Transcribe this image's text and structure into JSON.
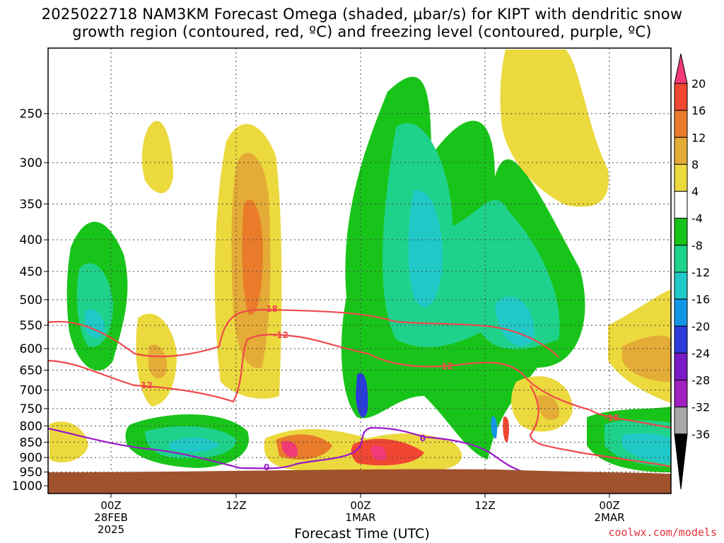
{
  "title": {
    "line1": "2025022718 NAM3KM Forecast Omega (shaded, μbar/s) for KIPT with dendritic snow",
    "line2": "growth region (contoured, red, ºC) and freezing level (contoured, purple, ºC)"
  },
  "credit": "coolwx.com/models",
  "chart_data": {
    "type": "heatmap",
    "xlabel": "Forecast Time (UTC)",
    "ylabel": "",
    "y_scale": "log-pressure",
    "y_direction": "reversed",
    "ylim": [
      1000,
      200
    ],
    "ytick_labels": [
      "250",
      "300",
      "350",
      "400",
      "450",
      "500",
      "550",
      "600",
      "650",
      "700",
      "750",
      "800",
      "850",
      "900",
      "950",
      "1000"
    ],
    "xtick_labels": [
      {
        "line1": "00Z",
        "line2": "28FEB",
        "line3": "2025"
      },
      {
        "line1": "12Z",
        "line2": "",
        "line3": ""
      },
      {
        "line1": "00Z",
        "line2": "1MAR",
        "line3": ""
      },
      {
        "line1": "12Z",
        "line2": "",
        "line3": ""
      },
      {
        "line1": "00Z",
        "line2": "2MAR",
        "line3": ""
      }
    ],
    "grid": true,
    "colorbar": {
      "labels": [
        "20",
        "16",
        "12",
        "8",
        "4",
        "-4",
        "-8",
        "-12",
        "-16",
        "-20",
        "-24",
        "-28",
        "-32",
        "-36"
      ],
      "colors": [
        "#f23a77",
        "#f04632",
        "#ea7b2a",
        "#e4ab36",
        "#ebd93e",
        "#ffffff",
        "#19c41a",
        "#1fd28c",
        "#21c8c8",
        "#1496e6",
        "#2a3cdc",
        "#7a1ac8",
        "#a020c0",
        "#a8a8a8",
        "#000000"
      ]
    },
    "contours": {
      "dgz_color": "#f0484a",
      "freezing_color": "#9a18c8",
      "labels": [
        "-18",
        "-12",
        "-12",
        "-12",
        "-18",
        "0",
        "0"
      ]
    },
    "ground_color": "#a0522d"
  }
}
